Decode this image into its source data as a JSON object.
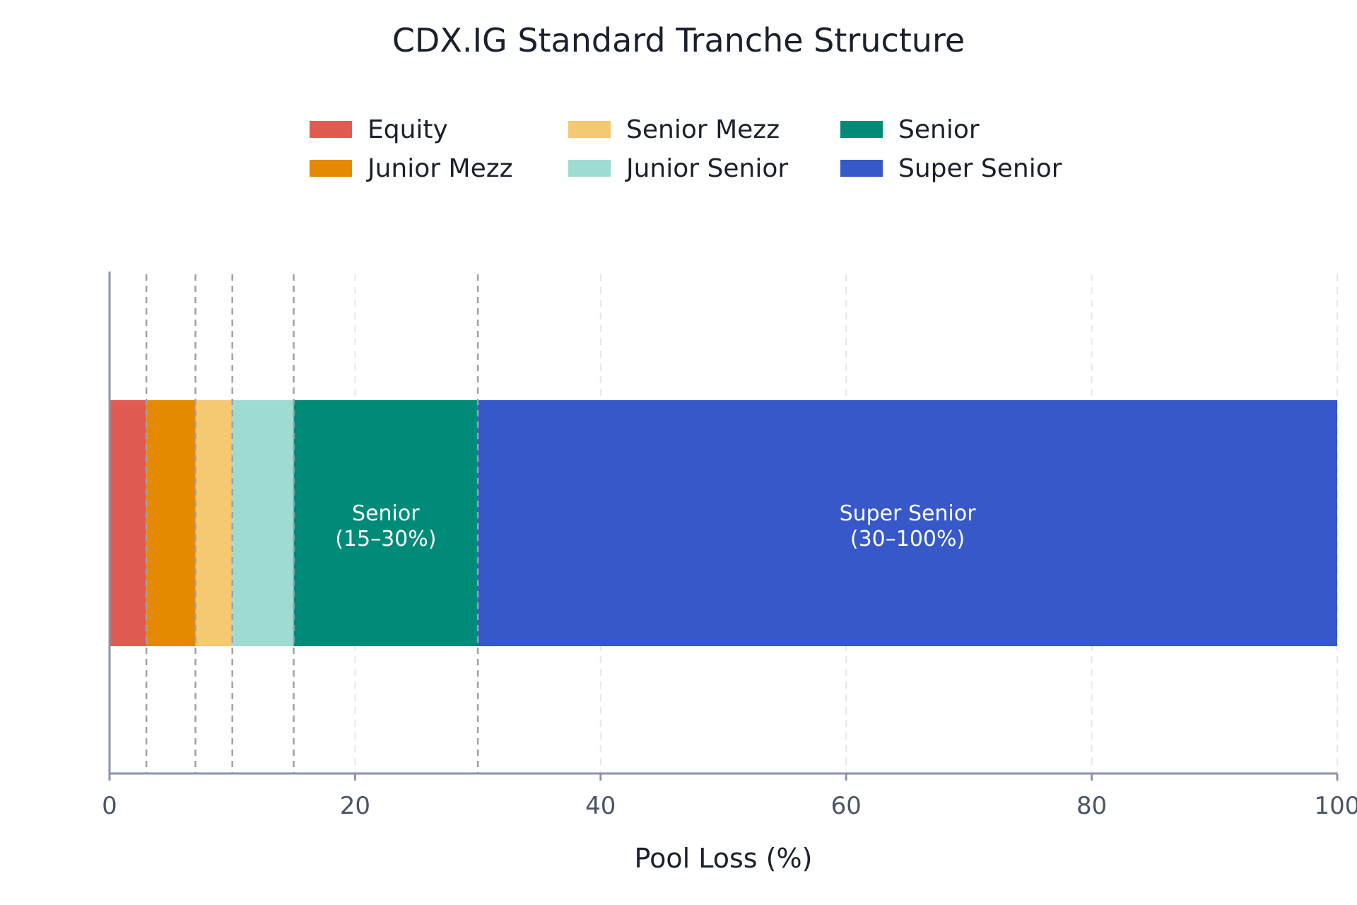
{
  "chart_data": {
    "type": "bar",
    "orientation": "horizontal-stacked",
    "title": "CDX.IG Standard Tranche Structure",
    "xlabel": "Pool Loss (%)",
    "ylabel": "",
    "xlim": [
      0,
      100
    ],
    "x_ticks": [
      0,
      20,
      40,
      60,
      80,
      100
    ],
    "grid": "vertical dashed",
    "legend_position": "top-center",
    "boundaries": [
      3,
      7,
      10,
      15,
      30
    ],
    "series": [
      {
        "name": "Equity",
        "start": 0,
        "end": 3,
        "color": "#e05c50",
        "label": ""
      },
      {
        "name": "Junior Mezz",
        "start": 3,
        "end": 7,
        "color": "#e58a00",
        "label": ""
      },
      {
        "name": "Senior Mezz",
        "start": 7,
        "end": 10,
        "color": "#f5c872",
        "label": ""
      },
      {
        "name": "Junior Senior",
        "start": 10,
        "end": 15,
        "color": "#9edcd1",
        "label": ""
      },
      {
        "name": "Senior",
        "start": 15,
        "end": 30,
        "color": "#008b79",
        "label": "Senior\n(15–30%)"
      },
      {
        "name": "Super Senior",
        "start": 30,
        "end": 100,
        "color": "#3658c8",
        "label": "Super Senior\n(30–100%)"
      }
    ]
  }
}
